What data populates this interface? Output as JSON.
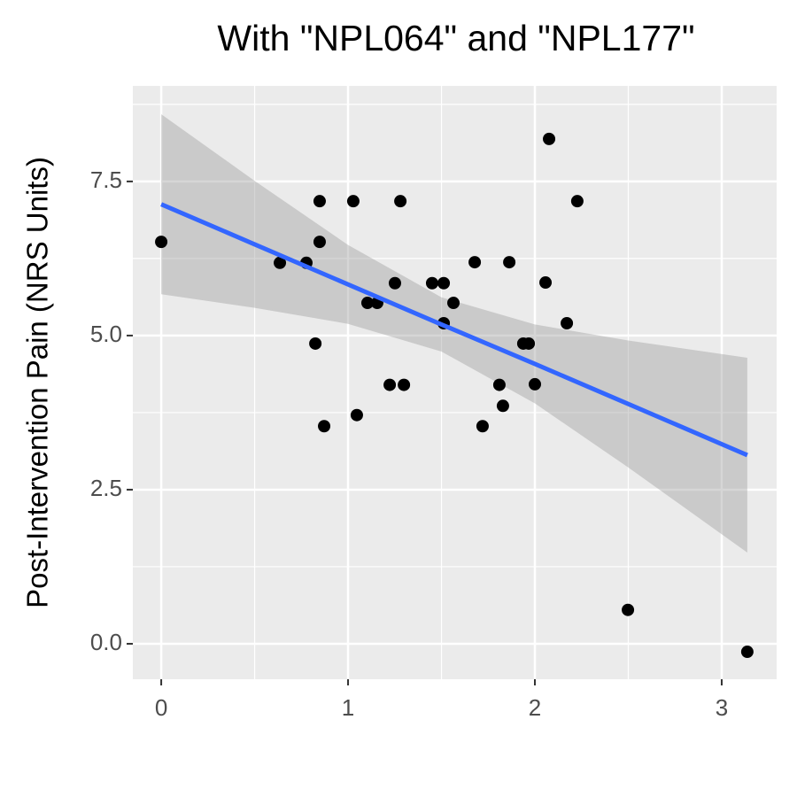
{
  "chart_data": {
    "type": "scatter",
    "title": "With \"NPL064\" and \"NPL177\"",
    "y_label": "Post-Intervention Pain (NRS Units)",
    "series": [
      {
        "color": "#000000",
        "x": [
          0,
          0.635,
          0.777,
          0.848,
          0.848,
          0.825,
          0.872,
          1.028,
          1.047,
          1.104,
          1.156,
          1.223,
          1.251,
          1.28,
          1.299,
          1.45,
          1.512,
          1.512,
          1.564,
          1.678,
          1.72,
          1.81,
          1.829,
          1.863,
          1.938,
          1.967,
          2.0,
          2.057,
          2.076,
          2.171,
          2.227,
          2.498,
          3.137
        ],
        "values": [
          6.52,
          6.18,
          6.18,
          7.18,
          6.52,
          4.87,
          3.53,
          7.18,
          3.71,
          5.53,
          5.53,
          4.2,
          5.85,
          7.18,
          4.2,
          5.85,
          5.85,
          5.2,
          5.53,
          6.19,
          3.53,
          4.2,
          3.86,
          6.19,
          4.87,
          4.87,
          4.21,
          5.86,
          8.19,
          5.2,
          7.18,
          0.55,
          -0.13
        ]
      }
    ],
    "fit": {
      "color": "#3366ff",
      "band_color": "#999999",
      "x": [
        0,
        0.5,
        1.0,
        1.5,
        2.0,
        2.5,
        3.137
      ],
      "values": [
        7.13,
        6.48,
        5.83,
        5.18,
        4.54,
        3.89,
        3.06
      ],
      "lower": [
        5.67,
        5.45,
        5.19,
        4.74,
        3.9,
        2.86,
        1.48
      ],
      "upper": [
        8.59,
        7.51,
        6.47,
        5.62,
        5.18,
        4.92,
        4.64
      ]
    },
    "xlim": [
      -0.152,
      3.294
    ],
    "ylim": [
      -0.575,
      9.05
    ],
    "xticks": [
      0,
      1,
      2,
      3
    ],
    "yticks": [
      {
        "value": 0,
        "label": "0.0"
      },
      2.5,
      {
        "value": 5,
        "label": "5.0"
      },
      7.5
    ],
    "grid": true
  }
}
